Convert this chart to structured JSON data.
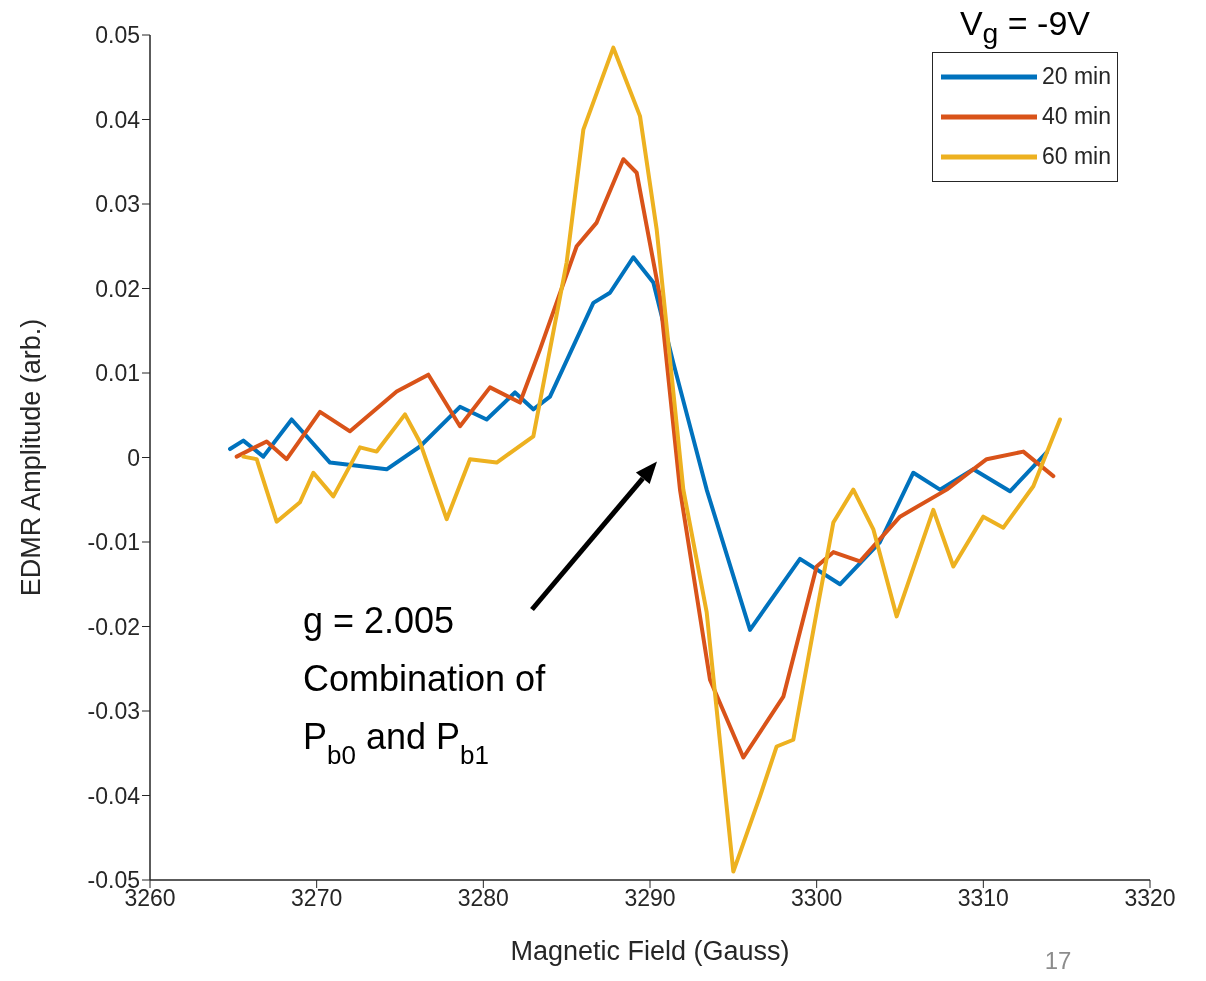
{
  "chart_data": {
    "type": "line",
    "xlabel": "Magnetic Field (Gauss)",
    "ylabel": "EDMR Amplitude (arb.)",
    "legend_title": "V$_{g}$ = -9V",
    "xlim": [
      3260,
      3320
    ],
    "xticks": [
      3260,
      3270,
      3280,
      3290,
      3300,
      3310,
      3320
    ],
    "ylim": [
      -0.05,
      0.05
    ],
    "yticks": [
      -0.05,
      -0.04,
      -0.03,
      -0.02,
      -0.01,
      0,
      0.01,
      0.02,
      0.03,
      0.04,
      0.05
    ],
    "legend": "top right",
    "grid": false,
    "marker": "none",
    "line_style": "solid",
    "annotations": [
      "g = 2.005\nCombination of\nP$_{b0}$ and P$_{b1}$",
      "17"
    ],
    "series": [
      {
        "name": "20 min",
        "color": "#0072bd",
        "x": [
          3264.8,
          3265.6,
          3266.8,
          3268.5,
          3270.8,
          3274.2,
          3276.2,
          3278.6,
          3280.2,
          3281.9,
          3283.0,
          3284.0,
          3286.6,
          3287.6,
          3289.0,
          3290.2,
          3291.4,
          3293.4,
          3296.0,
          3299.0,
          3301.4,
          3303.8,
          3305.8,
          3307.4,
          3309.4,
          3311.6,
          3313.8
        ],
        "values": [
          0.001,
          0.002,
          0.0001,
          0.0045,
          -0.0006,
          -0.0014,
          0.0013,
          0.006,
          0.0045,
          0.0077,
          0.0057,
          0.0072,
          0.0183,
          0.0195,
          0.0237,
          0.0207,
          0.0112,
          -0.0038,
          -0.0204,
          -0.012,
          -0.015,
          -0.01,
          -0.0018,
          -0.0038,
          -0.0014,
          -0.004,
          0.0006
        ]
      },
      {
        "name": "40 min",
        "color": "#d95319",
        "x": [
          3265.2,
          3267.0,
          3268.2,
          3270.2,
          3272.0,
          3274.8,
          3276.7,
          3278.6,
          3280.4,
          3282.2,
          3283.4,
          3285.6,
          3286.8,
          3288.4,
          3289.2,
          3290.6,
          3291.8,
          3293.6,
          3295.6,
          3298.0,
          3300.0,
          3301.0,
          3302.6,
          3305.0,
          3307.8,
          3310.2,
          3312.4,
          3314.2
        ],
        "values": [
          0.0001,
          0.0019,
          -0.0002,
          0.0054,
          0.0031,
          0.0078,
          0.0098,
          0.0037,
          0.0083,
          0.0065,
          0.0128,
          0.025,
          0.0278,
          0.0353,
          0.0337,
          0.019,
          -0.0038,
          -0.0263,
          -0.0355,
          -0.0283,
          -0.0129,
          -0.0112,
          -0.0123,
          -0.007,
          -0.0038,
          -0.0002,
          0.0007,
          -0.0022
        ]
      },
      {
        "name": "60 min",
        "color": "#edb120",
        "x": [
          3265.6,
          3266.4,
          3267.6,
          3269.0,
          3269.8,
          3271.0,
          3272.6,
          3273.6,
          3275.3,
          3276.2,
          3277.8,
          3279.2,
          3280.8,
          3283.0,
          3284.0,
          3285.0,
          3286.0,
          3287.8,
          3289.4,
          3290.4,
          3292.0,
          3293.4,
          3295.0,
          3296.6,
          3297.6,
          3298.6,
          3300.0,
          3301.0,
          3302.2,
          3303.4,
          3304.8,
          3307.0,
          3308.2,
          3310.0,
          3311.2,
          3313.0,
          3314.6
        ],
        "values": [
          0.0001,
          -0.0002,
          -0.0076,
          -0.0053,
          -0.0018,
          -0.0046,
          0.0012,
          0.0007,
          0.0051,
          0.0018,
          -0.0073,
          -0.0002,
          -0.0006,
          0.0025,
          0.0128,
          0.0231,
          0.0388,
          0.0485,
          0.0404,
          0.027,
          -0.0038,
          -0.0183,
          -0.049,
          -0.0401,
          -0.0342,
          -0.0334,
          -0.0183,
          -0.0077,
          -0.0038,
          -0.0085,
          -0.0188,
          -0.0062,
          -0.0129,
          -0.007,
          -0.0083,
          -0.0034,
          0.0045
        ]
      }
    ]
  }
}
